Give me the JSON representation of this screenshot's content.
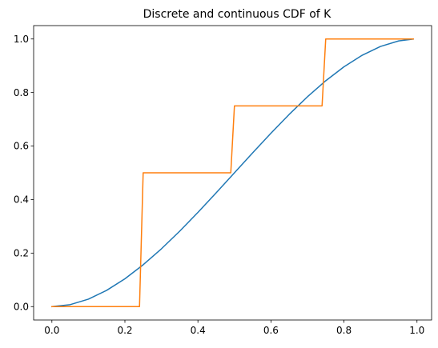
{
  "chart_data": {
    "type": "line",
    "title": "Discrete and continuous CDF of K",
    "xlabel": "",
    "ylabel": "",
    "xlim": [
      -0.05,
      1.04
    ],
    "ylim": [
      -0.05,
      1.05
    ],
    "x_ticks": [
      0.0,
      0.2,
      0.4,
      0.6,
      0.8,
      1.0
    ],
    "x_tick_labels": [
      "0.0",
      "0.2",
      "0.4",
      "0.6",
      "0.8",
      "1.0"
    ],
    "y_ticks": [
      0.0,
      0.2,
      0.4,
      0.6,
      0.8,
      1.0
    ],
    "y_tick_labels": [
      "0.0",
      "0.2",
      "0.4",
      "0.6",
      "0.8",
      "1.0"
    ],
    "grid": false,
    "legend": "none",
    "series": [
      {
        "color": "#1f77b4",
        "x": [
          0.0,
          0.05,
          0.1,
          0.15,
          0.2,
          0.25,
          0.3,
          0.35,
          0.4,
          0.45,
          0.5,
          0.55,
          0.6,
          0.65,
          0.7,
          0.75,
          0.8,
          0.85,
          0.9,
          0.95,
          0.99
        ],
        "y": [
          0.0,
          0.0073,
          0.028,
          0.0608,
          0.104,
          0.1563,
          0.216,
          0.2818,
          0.352,
          0.4253,
          0.5,
          0.5748,
          0.648,
          0.7183,
          0.784,
          0.8438,
          0.896,
          0.9393,
          0.972,
          0.9928,
          0.9997
        ]
      },
      {
        "color": "#ff7f0e",
        "x": [
          0.0,
          0.24,
          0.25,
          0.49,
          0.5,
          0.74,
          0.75,
          0.99
        ],
        "y": [
          0.0,
          0.0,
          0.5,
          0.5,
          0.75,
          0.75,
          1.0,
          1.0
        ]
      }
    ]
  }
}
